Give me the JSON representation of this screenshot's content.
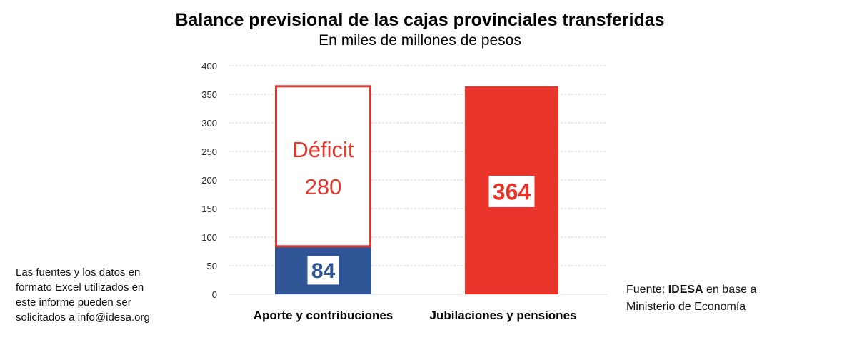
{
  "chart_data": {
    "type": "bar",
    "stacked": true,
    "title": "Balance previsional de las cajas provinciales transferidas",
    "subtitle": "En miles de millones de pesos",
    "categories": [
      "Aporte y contribuciones",
      "Jubilaciones y pensiones"
    ],
    "series": [
      {
        "values": [
          84,
          364
        ],
        "colors": [
          "#2f5597",
          "#e8342a"
        ],
        "labels": [
          "84",
          "364"
        ]
      },
      {
        "name": "Déficit",
        "values": [
          280,
          0
        ],
        "fill": "#ffffff",
        "outline": "#e8342a",
        "labels": [
          "Déficit 280",
          ""
        ]
      }
    ],
    "deficit_label": "Déficit",
    "deficit_value": "280",
    "ylim": [
      0,
      400
    ],
    "yticks": [
      0,
      50,
      100,
      150,
      200,
      250,
      300,
      350,
      400
    ],
    "grid": true,
    "legend": "none"
  },
  "notes": {
    "left": [
      "Las fuentes y los datos en",
      "formato Excel utilizados en",
      "este informe pueden ser",
      "solicitados a info@idesa.org"
    ],
    "source_prefix": "Fuente: ",
    "source_bold": "IDESA",
    "source_suffix": " en base a",
    "source_line2": "Ministerio de Economía"
  }
}
